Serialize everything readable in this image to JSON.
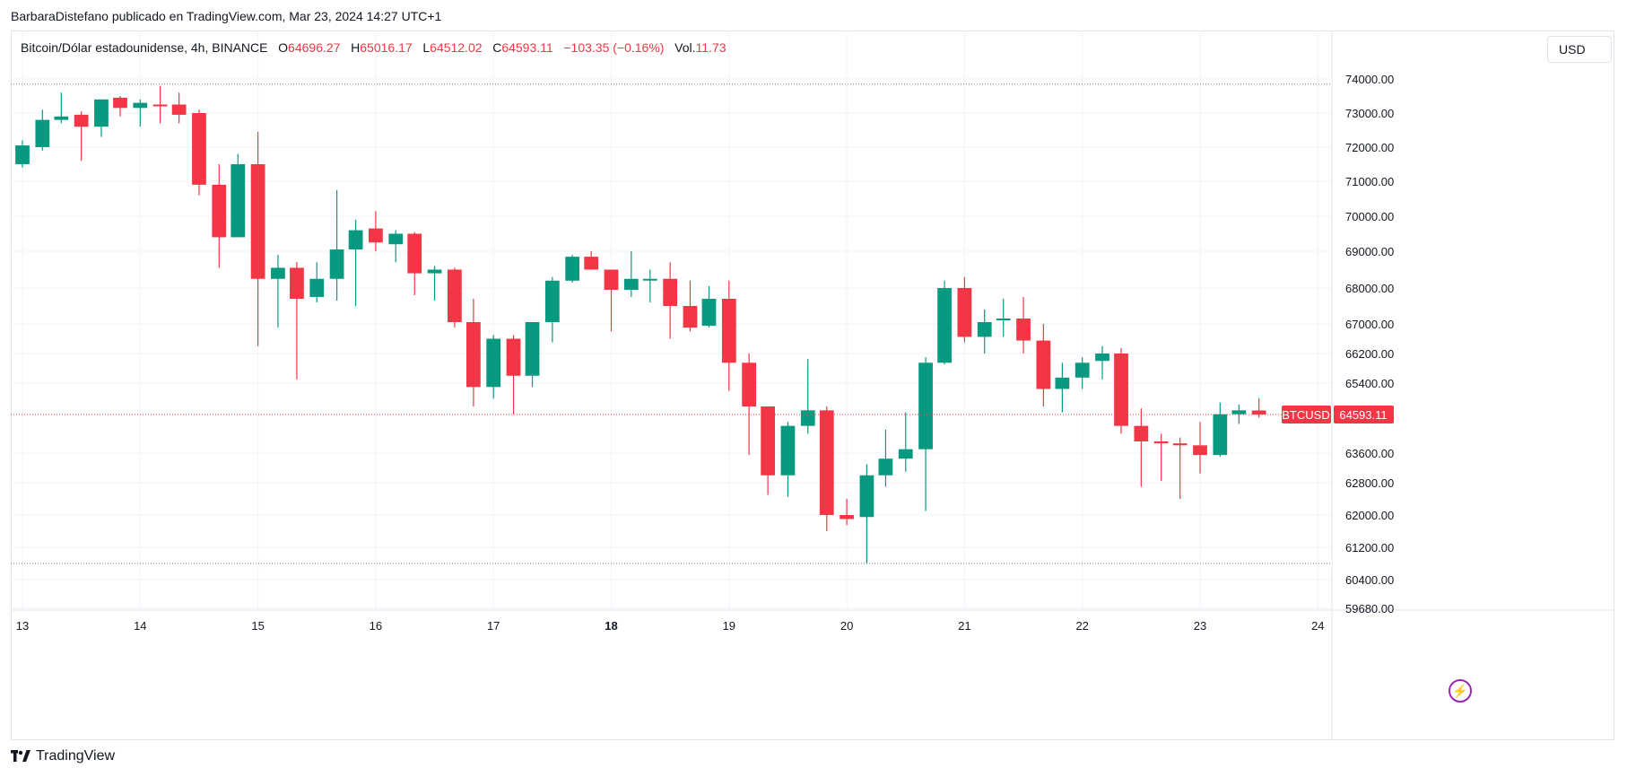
{
  "attribution": "BarbaraDistefano publicado en TradingView.com, Mar 23, 2024 14:27 UTC+1",
  "legend": {
    "symbol": "Bitcoin/Dólar estadounidense, 4h, BINANCE",
    "o_label": "O",
    "o_value": "64696.27",
    "h_label": "H",
    "h_value": "65016.17",
    "l_label": "L",
    "l_value": "64512.02",
    "c_label": "C",
    "c_value": "64593.11",
    "change": "−103.35 (−0.16%)",
    "vol_label": "Vol.",
    "vol_value": "11.73"
  },
  "currency_button": "USD",
  "footer_logo": "TradingView",
  "icons": {
    "flash": "flash-icon",
    "logo": "tradingview-logo-icon"
  },
  "colors": {
    "up": "#089981",
    "down": "#f23645",
    "grid": "#f0f3fa",
    "text": "#131722"
  },
  "chart_data": {
    "type": "candlestick",
    "symbol": "BTCUSD",
    "interval": "4h",
    "y_ticks": [
      74000,
      73000,
      72000,
      71000,
      70000,
      69000,
      68000,
      67000,
      66200,
      65400,
      63600,
      62800,
      62000,
      61200,
      60400,
      59680
    ],
    "y_tick_labels": [
      "74000.00",
      "73000.00",
      "72000.00",
      "71000.00",
      "70000.00",
      "69000.00",
      "68000.00",
      "67000.00",
      "66200.00",
      "65400.00",
      "63600.00",
      "62800.00",
      "62000.00",
      "61200.00",
      "60400.00",
      "59680.00"
    ],
    "x_ticks": [
      13,
      14,
      15,
      16,
      17,
      18,
      19,
      20,
      21,
      22,
      23,
      24
    ],
    "x_tick_labels": [
      "13",
      "14",
      "15",
      "16",
      "17",
      "18",
      "19",
      "20",
      "21",
      "22",
      "23",
      "24"
    ],
    "x_bold_tick": 18,
    "ylim": [
      59680,
      75000
    ],
    "xlim": [
      12.92,
      24.04
    ],
    "candle_interval_days": 0.16667,
    "price_line": {
      "label": "BTCUSD",
      "value": "64593.11",
      "price": 64593.11
    },
    "dotted_levels": [
      73850,
      60800
    ],
    "candles": [
      {
        "t": 13.0,
        "o": 71500,
        "h": 72200,
        "l": 71400,
        "c": 72050
      },
      {
        "t": 13.17,
        "o": 72000,
        "h": 73100,
        "l": 71900,
        "c": 72800
      },
      {
        "t": 13.33,
        "o": 72800,
        "h": 73600,
        "l": 72700,
        "c": 72900
      },
      {
        "t": 13.5,
        "o": 72950,
        "h": 73050,
        "l": 71600,
        "c": 72600
      },
      {
        "t": 13.67,
        "o": 72600,
        "h": 73400,
        "l": 72300,
        "c": 73400
      },
      {
        "t": 13.83,
        "o": 73450,
        "h": 73500,
        "l": 72900,
        "c": 73150
      },
      {
        "t": 14.0,
        "o": 73150,
        "h": 73400,
        "l": 72600,
        "c": 73300
      },
      {
        "t": 14.17,
        "o": 73250,
        "h": 73800,
        "l": 72700,
        "c": 73200
      },
      {
        "t": 14.33,
        "o": 73250,
        "h": 73600,
        "l": 72700,
        "c": 72950
      },
      {
        "t": 14.5,
        "o": 73000,
        "h": 73100,
        "l": 70600,
        "c": 70900
      },
      {
        "t": 14.67,
        "o": 70900,
        "h": 71500,
        "l": 68550,
        "c": 69400
      },
      {
        "t": 14.83,
        "o": 69400,
        "h": 71800,
        "l": 69400,
        "c": 71500
      },
      {
        "t": 15.0,
        "o": 71500,
        "h": 72450,
        "l": 66400,
        "c": 68250
      },
      {
        "t": 15.17,
        "o": 68250,
        "h": 68900,
        "l": 66900,
        "c": 68550
      },
      {
        "t": 15.33,
        "o": 68550,
        "h": 68700,
        "l": 65500,
        "c": 67700
      },
      {
        "t": 15.5,
        "o": 67750,
        "h": 68700,
        "l": 67600,
        "c": 68250
      },
      {
        "t": 15.67,
        "o": 68250,
        "h": 70750,
        "l": 67650,
        "c": 69050
      },
      {
        "t": 15.83,
        "o": 69050,
        "h": 69900,
        "l": 67500,
        "c": 69600
      },
      {
        "t": 16.0,
        "o": 69650,
        "h": 70150,
        "l": 69000,
        "c": 69250
      },
      {
        "t": 16.17,
        "o": 69200,
        "h": 69600,
        "l": 68700,
        "c": 69500
      },
      {
        "t": 16.33,
        "o": 69500,
        "h": 69550,
        "l": 67800,
        "c": 68400
      },
      {
        "t": 16.5,
        "o": 68400,
        "h": 68600,
        "l": 67650,
        "c": 68500
      },
      {
        "t": 16.67,
        "o": 68500,
        "h": 68550,
        "l": 66900,
        "c": 67050
      },
      {
        "t": 16.83,
        "o": 67050,
        "h": 67700,
        "l": 64800,
        "c": 65300
      },
      {
        "t": 17.0,
        "o": 65300,
        "h": 66700,
        "l": 65000,
        "c": 66600
      },
      {
        "t": 17.17,
        "o": 66600,
        "h": 66700,
        "l": 64600,
        "c": 65600
      },
      {
        "t": 17.33,
        "o": 65600,
        "h": 67050,
        "l": 65300,
        "c": 67050
      },
      {
        "t": 17.5,
        "o": 67050,
        "h": 68300,
        "l": 66500,
        "c": 68200
      },
      {
        "t": 17.67,
        "o": 68200,
        "h": 68900,
        "l": 68150,
        "c": 68850
      },
      {
        "t": 17.83,
        "o": 68850,
        "h": 69000,
        "l": 68500,
        "c": 68500
      },
      {
        "t": 18.0,
        "o": 68500,
        "h": 68500,
        "l": 66800,
        "c": 67950
      },
      {
        "t": 18.17,
        "o": 67950,
        "h": 69000,
        "l": 67750,
        "c": 68250
      },
      {
        "t": 18.33,
        "o": 68250,
        "h": 68500,
        "l": 67600,
        "c": 68250
      },
      {
        "t": 18.5,
        "o": 68250,
        "h": 68700,
        "l": 66600,
        "c": 67500
      },
      {
        "t": 18.67,
        "o": 67500,
        "h": 68200,
        "l": 66800,
        "c": 66900
      },
      {
        "t": 18.83,
        "o": 66950,
        "h": 68050,
        "l": 66900,
        "c": 67700
      },
      {
        "t": 19.0,
        "o": 67700,
        "h": 68200,
        "l": 65200,
        "c": 65950
      },
      {
        "t": 19.17,
        "o": 65950,
        "h": 66200,
        "l": 63550,
        "c": 64800
      },
      {
        "t": 19.33,
        "o": 64800,
        "h": 64800,
        "l": 62500,
        "c": 63000
      },
      {
        "t": 19.5,
        "o": 63000,
        "h": 64400,
        "l": 62450,
        "c": 64300
      },
      {
        "t": 19.67,
        "o": 64300,
        "h": 66050,
        "l": 64100,
        "c": 64700
      },
      {
        "t": 19.83,
        "o": 64700,
        "h": 64800,
        "l": 61600,
        "c": 62000
      },
      {
        "t": 20.0,
        "o": 62000,
        "h": 62400,
        "l": 61750,
        "c": 61900
      },
      {
        "t": 20.17,
        "o": 61950,
        "h": 63300,
        "l": 60800,
        "c": 63000
      },
      {
        "t": 20.33,
        "o": 63000,
        "h": 64200,
        "l": 62700,
        "c": 63450
      },
      {
        "t": 20.5,
        "o": 63450,
        "h": 64650,
        "l": 63100,
        "c": 63700
      },
      {
        "t": 20.67,
        "o": 63700,
        "h": 66100,
        "l": 62100,
        "c": 65950
      },
      {
        "t": 20.83,
        "o": 65950,
        "h": 68200,
        "l": 65900,
        "c": 68000
      },
      {
        "t": 21.0,
        "o": 68000,
        "h": 68300,
        "l": 66500,
        "c": 66650
      },
      {
        "t": 21.17,
        "o": 66650,
        "h": 67400,
        "l": 66200,
        "c": 67050
      },
      {
        "t": 21.33,
        "o": 67100,
        "h": 67700,
        "l": 66650,
        "c": 67150
      },
      {
        "t": 21.5,
        "o": 67150,
        "h": 67750,
        "l": 66200,
        "c": 66550
      },
      {
        "t": 21.67,
        "o": 66550,
        "h": 67000,
        "l": 64800,
        "c": 65250
      },
      {
        "t": 21.83,
        "o": 65250,
        "h": 65950,
        "l": 64650,
        "c": 65550
      },
      {
        "t": 22.0,
        "o": 65550,
        "h": 66100,
        "l": 65250,
        "c": 65950
      },
      {
        "t": 22.17,
        "o": 66000,
        "h": 66400,
        "l": 65500,
        "c": 66200
      },
      {
        "t": 22.33,
        "o": 66200,
        "h": 66350,
        "l": 64100,
        "c": 64300
      },
      {
        "t": 22.5,
        "o": 64300,
        "h": 64750,
        "l": 62700,
        "c": 63900
      },
      {
        "t": 22.67,
        "o": 63900,
        "h": 64100,
        "l": 62850,
        "c": 63850
      },
      {
        "t": 22.83,
        "o": 63850,
        "h": 64000,
        "l": 62400,
        "c": 63800
      },
      {
        "t": 23.0,
        "o": 63800,
        "h": 64400,
        "l": 63050,
        "c": 63550
      },
      {
        "t": 23.17,
        "o": 63550,
        "h": 64900,
        "l": 63500,
        "c": 64600
      },
      {
        "t": 23.33,
        "o": 64600,
        "h": 64850,
        "l": 64350,
        "c": 64700
      },
      {
        "t": 23.5,
        "o": 64696.27,
        "h": 65016.17,
        "l": 64512.02,
        "c": 64593.11
      }
    ]
  }
}
